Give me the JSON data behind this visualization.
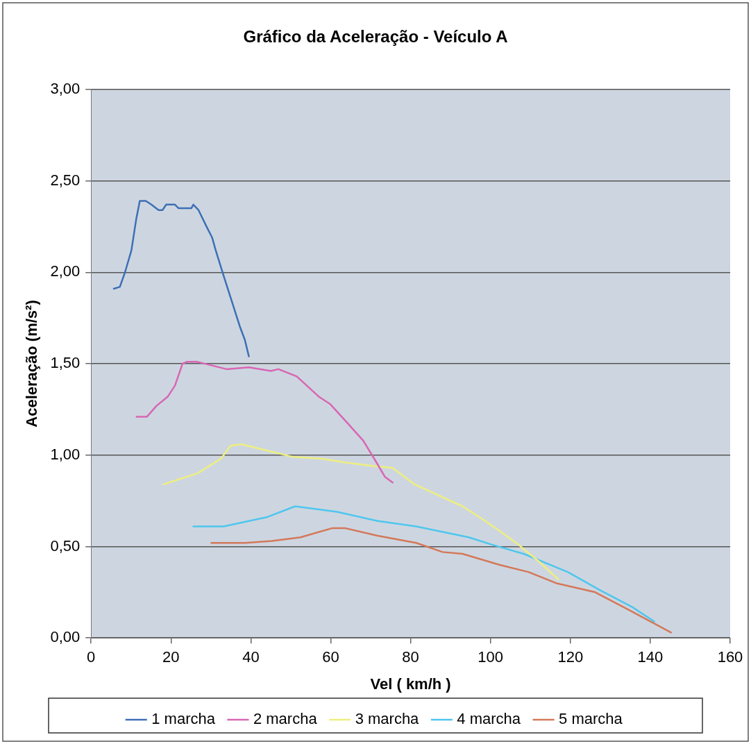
{
  "chart_data": {
    "type": "line",
    "title": "Gráfico da Aceleração - Veículo A",
    "xlabel": "Vel ( km/h )",
    "ylabel": "Aceleração (m/s²)",
    "xlim": [
      0,
      160
    ],
    "xticks": [
      0,
      20,
      40,
      60,
      80,
      100,
      120,
      140,
      160
    ],
    "ylim": [
      0,
      3
    ],
    "yticks": [
      {
        "value": 0,
        "label": "0,00"
      },
      {
        "value": 0.5,
        "label": "0,50"
      },
      {
        "value": 1,
        "label": "1,00"
      },
      {
        "value": 1.5,
        "label": "1,50"
      },
      {
        "value": 2,
        "label": "2,00"
      },
      {
        "value": 2.5,
        "label": "2,50"
      },
      {
        "value": 3,
        "label": "3,00"
      }
    ],
    "grid": "y",
    "legend": "bottom",
    "marker": "none",
    "line_style": "solid",
    "series": [
      {
        "name": "1 marcha",
        "color": "#3d6fb6",
        "x": [
          5.7,
          7.2,
          8.5,
          10.1,
          11.3,
          12.2,
          13.7,
          15.1,
          16.9,
          17.9,
          18.8,
          21,
          21.9,
          25.1,
          25.6,
          26.9,
          28.9,
          30.3,
          31.2,
          33.2,
          35.4,
          37.3,
          38.5,
          39.5
        ],
        "values": [
          1.91,
          1.92,
          2.0,
          2.12,
          2.29,
          2.39,
          2.39,
          2.37,
          2.34,
          2.34,
          2.37,
          2.37,
          2.35,
          2.35,
          2.37,
          2.34,
          2.25,
          2.19,
          2.12,
          1.98,
          1.83,
          1.7,
          1.63,
          1.54
        ]
      },
      {
        "name": "2 marcha",
        "color": "#d866b4",
        "x": [
          11.4,
          14,
          16.4,
          19.2,
          21,
          22.9,
          24,
          26.6,
          30.3,
          33.9,
          39.5,
          45,
          46.9,
          51.5,
          57,
          59.8,
          64.4,
          68.1,
          70.9,
          73.6,
          75.5
        ],
        "values": [
          1.21,
          1.21,
          1.27,
          1.32,
          1.38,
          1.5,
          1.51,
          1.51,
          1.49,
          1.47,
          1.48,
          1.46,
          1.47,
          1.43,
          1.32,
          1.28,
          1.17,
          1.08,
          0.98,
          0.88,
          0.85
        ]
      },
      {
        "name": "3 marcha",
        "color": "#eeee80",
        "x": [
          18.1,
          26.6,
          32.5,
          34.9,
          37.6,
          45,
          50.6,
          57.9,
          63.5,
          70.8,
          75.5,
          81,
          88,
          93,
          98,
          102,
          107,
          112,
          117
        ],
        "values": [
          0.84,
          0.9,
          0.98,
          1.05,
          1.06,
          1.02,
          0.99,
          0.98,
          0.96,
          0.94,
          0.93,
          0.84,
          0.77,
          0.72,
          0.65,
          0.59,
          0.51,
          0.42,
          0.32
        ]
      },
      {
        "name": "4 marcha",
        "color": "#4ec6ee",
        "x": [
          25.6,
          33.2,
          43.9,
          51.1,
          61.6,
          71.6,
          81.4,
          94.6,
          100.4,
          108.3,
          119.4,
          127.5,
          135.4,
          141
        ],
        "values": [
          0.61,
          0.61,
          0.66,
          0.72,
          0.69,
          0.64,
          0.61,
          0.55,
          0.51,
          0.46,
          0.36,
          0.26,
          0.17,
          0.09
        ]
      },
      {
        "name": "5 marcha",
        "color": "#d4785a",
        "x": [
          30.1,
          38.6,
          45.2,
          52.4,
          60.3,
          63.7,
          71.6,
          81.4,
          88,
          93,
          102.2,
          109.6,
          116.4,
          126.2,
          134.9,
          145.2
        ],
        "values": [
          0.52,
          0.52,
          0.53,
          0.55,
          0.6,
          0.6,
          0.56,
          0.52,
          0.47,
          0.46,
          0.4,
          0.36,
          0.3,
          0.25,
          0.15,
          0.03
        ]
      }
    ]
  }
}
